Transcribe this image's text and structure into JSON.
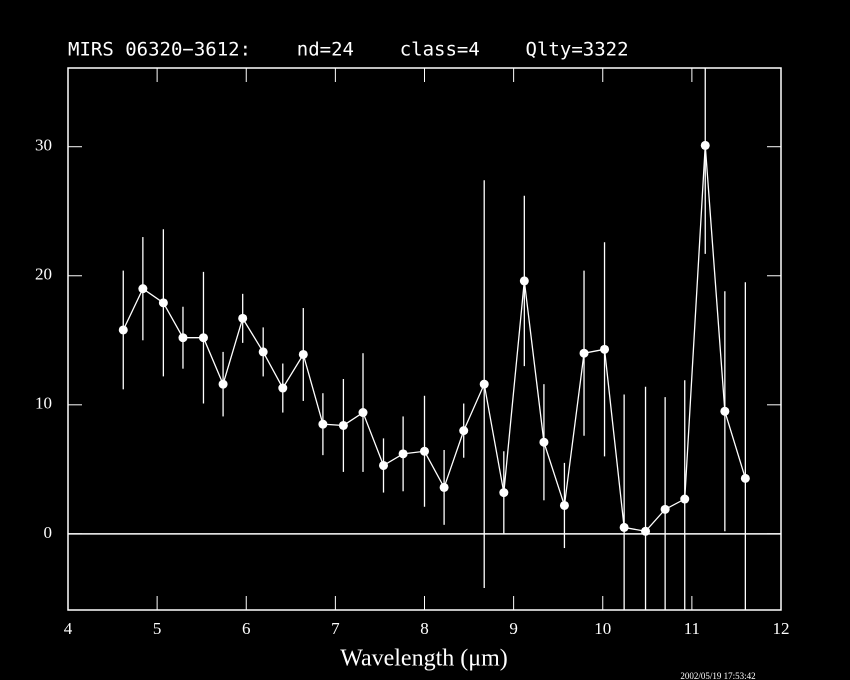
{
  "chart_data": {
    "type": "errorbar-line",
    "title": "MIRS 06320−3612:    nd=24    class=4    Qlty=3322",
    "x_label": "Wavelength (μm)",
    "timestamp": "2002/05/19 17:53:42",
    "color": "#ffffff",
    "x": [
      4.62,
      4.84,
      5.07,
      5.29,
      5.52,
      5.74,
      5.96,
      6.19,
      6.41,
      6.64,
      6.86,
      7.09,
      7.31,
      7.54,
      7.76,
      8.0,
      8.22,
      8.44,
      8.67,
      8.89,
      9.12,
      9.34,
      9.57,
      9.79,
      10.02,
      10.24,
      10.48,
      10.7,
      10.92,
      11.15,
      11.37,
      11.6
    ],
    "values": [
      15.8,
      19.0,
      17.9,
      15.2,
      15.2,
      11.6,
      16.7,
      14.1,
      11.3,
      13.9,
      8.5,
      8.4,
      9.4,
      5.3,
      6.2,
      6.4,
      3.6,
      8.0,
      11.6,
      3.2,
      19.6,
      7.1,
      2.2,
      14.0,
      14.3,
      0.5,
      0.2,
      1.9,
      2.7,
      30.1,
      9.5,
      4.3
    ],
    "errors": [
      4.6,
      4.0,
      5.7,
      2.4,
      5.1,
      2.5,
      1.9,
      1.9,
      1.9,
      3.6,
      2.4,
      3.6,
      4.6,
      2.1,
      2.9,
      4.3,
      2.9,
      2.1,
      15.8,
      3.2,
      6.6,
      4.5,
      3.3,
      6.4,
      8.3,
      10.3,
      11.2,
      8.7,
      9.2,
      8.4,
      9.3,
      15.2
    ],
    "xlim": [
      4,
      12
    ],
    "xticks": [
      4,
      5,
      6,
      7,
      8,
      9,
      10,
      11,
      12
    ],
    "ylim": [
      -5.9,
      36.1
    ],
    "yticks": [
      0,
      10,
      20,
      30
    ],
    "hline": 0
  }
}
